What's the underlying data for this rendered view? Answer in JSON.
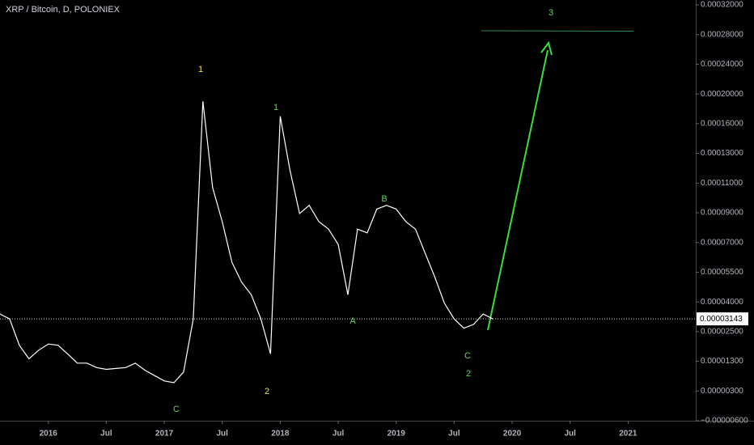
{
  "chart_data": {
    "type": "line",
    "title": "XRP / Bitcoin, D, POLONIEX",
    "x": [
      "2015-08",
      "2015-09",
      "2015-10",
      "2015-11",
      "2015-12",
      "2016-01",
      "2016-02",
      "2016-03",
      "2016-04",
      "2016-05",
      "2016-06",
      "2016-07",
      "2016-08",
      "2016-09",
      "2016-10",
      "2016-11",
      "2016-12",
      "2017-01",
      "2017-02",
      "2017-03",
      "2017-04",
      "2017-05",
      "2017-06",
      "2017-07",
      "2017-08",
      "2017-09",
      "2017-10",
      "2017-11",
      "2017-12",
      "2018-01",
      "2018-02",
      "2018-03",
      "2018-04",
      "2018-05",
      "2018-06",
      "2018-07",
      "2018-08",
      "2018-09",
      "2018-10",
      "2018-11",
      "2018-12",
      "2019-01",
      "2019-02",
      "2019-03",
      "2019-04",
      "2019-05",
      "2019-06",
      "2019-07",
      "2019-08",
      "2019-09",
      "2019-10",
      "2019-11"
    ],
    "series": [
      {
        "color": "#ffffff",
        "values": [
          3.39e-05,
          3.14e-05,
          1.95e-05,
          1.4e-05,
          1.75e-05,
          2e-05,
          1.95e-05,
          1.6e-05,
          1.24e-05,
          1.24e-05,
          1.09e-05,
          1.03e-05,
          1.06e-05,
          1.09e-05,
          1.24e-05,
          1e-05,
          8.2e-06,
          6.4e-06,
          5.8e-06,
          9.4e-06,
          3.14e-05,
          0.00019,
          0.000107,
          8.4e-05,
          6e-05,
          5e-05,
          4.36e-05,
          3.14e-05,
          1.6e-05,
          0.00017,
          0.000119,
          8.95e-05,
          9.5e-05,
          8.4e-05,
          7.9e-05,
          6.9e-05,
          4.36e-05,
          7.9e-05,
          7.65e-05,
          9.25e-05,
          9.5e-05,
          9.25e-05,
          8.4e-05,
          7.9e-05,
          6.45e-05,
          5.25e-05,
          3.93e-05,
          3.14e-05,
          2.68e-05,
          2.86e-05,
          3.39e-05,
          3.143e-05
        ]
      }
    ],
    "xlim": [
      "2015-08",
      "2021-08"
    ],
    "xticks": [
      {
        "value": "2016-01",
        "label": "2016"
      },
      {
        "value": "2016-07",
        "label": "Jul"
      },
      {
        "value": "2017-01",
        "label": "2017"
      },
      {
        "value": "2017-07",
        "label": "Jul"
      },
      {
        "value": "2018-01",
        "label": "2018"
      },
      {
        "value": "2018-07",
        "label": "Jul"
      },
      {
        "value": "2019-01",
        "label": "2019"
      },
      {
        "value": "2019-07",
        "label": "Jul"
      },
      {
        "value": "2020-01",
        "label": "2020"
      },
      {
        "value": "2020-07",
        "label": "Jul"
      },
      {
        "value": "2021-01",
        "label": "2021"
      }
    ],
    "yticks": [
      {
        "value": 0.00032,
        "label": "0.00032000"
      },
      {
        "value": 0.00028,
        "label": "0.00028000"
      },
      {
        "value": 0.00024,
        "label": "0.00024000"
      },
      {
        "value": 0.0002,
        "label": "0.00020000"
      },
      {
        "value": 0.00016,
        "label": "0.00016000"
      },
      {
        "value": 0.00013,
        "label": "0.00013000"
      },
      {
        "value": 0.00011,
        "label": "0.00011000"
      },
      {
        "value": 9e-05,
        "label": "0.00009000"
      },
      {
        "value": 7e-05,
        "label": "0.00007000"
      },
      {
        "value": 5.5e-05,
        "label": "0.00005500"
      },
      {
        "value": 4e-05,
        "label": "0.00004000"
      },
      {
        "value": 2.5e-05,
        "label": "0.00002500"
      },
      {
        "value": 1.3e-05,
        "label": "0.00001300"
      },
      {
        "value": 3e-06,
        "label": "0.00000300"
      },
      {
        "value": -6e-06,
        "label": "−0.00000600"
      }
    ],
    "last_price": 3.143e-05,
    "annotations": [
      "1",
      "1",
      "2",
      "2",
      "A",
      "B",
      "C",
      "C",
      "3"
    ]
  }
}
